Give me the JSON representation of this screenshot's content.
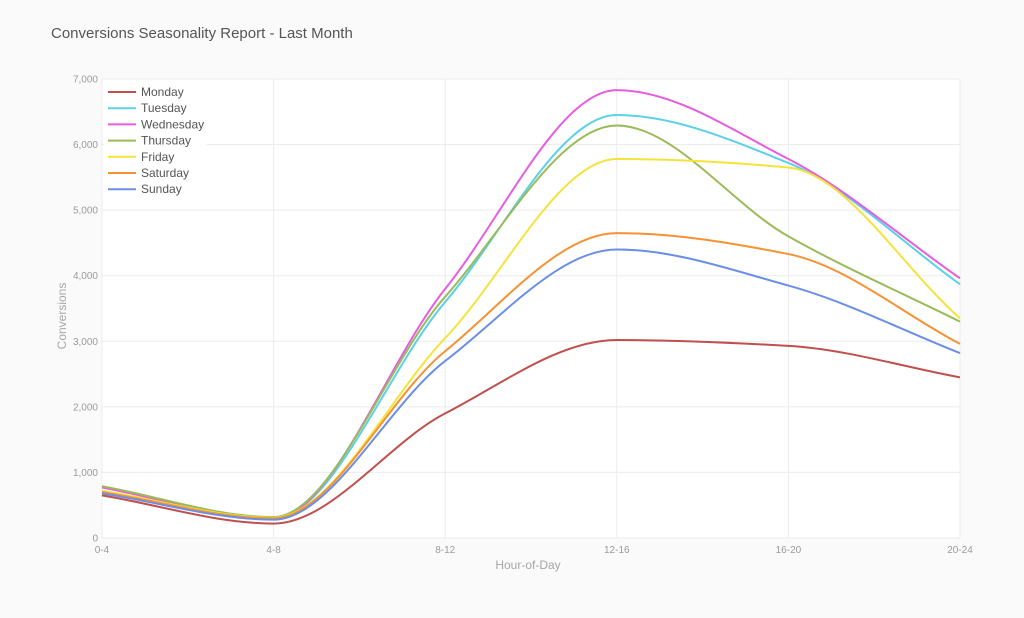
{
  "chart_data": {
    "type": "line",
    "title": "Conversions Seasonality Report - Last Month",
    "xlabel": "Hour-of-Day",
    "ylabel": "Conversions",
    "categories": [
      "0-4",
      "4-8",
      "8-12",
      "12-16",
      "16-20",
      "20-24"
    ],
    "ylim": [
      0,
      7000
    ],
    "yticks": [
      0,
      1000,
      2000,
      3000,
      4000,
      5000,
      6000,
      7000
    ],
    "ytick_labels": [
      "0",
      "1,000",
      "2,000",
      "3,000",
      "4,000",
      "5,000",
      "6,000",
      "7,000"
    ],
    "grid": true,
    "legend_position": "top-left",
    "smooth": true,
    "series": [
      {
        "name": "Monday",
        "color": "#c0504d",
        "values": [
          650,
          220,
          1900,
          3020,
          2930,
          2450
        ]
      },
      {
        "name": "Tuesday",
        "color": "#5bd1e8",
        "values": [
          780,
          300,
          3600,
          6450,
          5720,
          3870
        ]
      },
      {
        "name": "Wednesday",
        "color": "#e85ce0",
        "values": [
          770,
          300,
          3800,
          6830,
          5780,
          3960
        ]
      },
      {
        "name": "Thursday",
        "color": "#9bbb59",
        "values": [
          790,
          320,
          3680,
          6290,
          4600,
          3300
        ]
      },
      {
        "name": "Friday",
        "color": "#f5e33a",
        "values": [
          720,
          310,
          3050,
          5780,
          5650,
          3350
        ]
      },
      {
        "name": "Saturday",
        "color": "#f79232",
        "values": [
          700,
          300,
          2850,
          4650,
          4330,
          2960
        ]
      },
      {
        "name": "Sunday",
        "color": "#6b8fe8",
        "values": [
          680,
          280,
          2700,
          4400,
          3850,
          2820
        ]
      }
    ]
  }
}
